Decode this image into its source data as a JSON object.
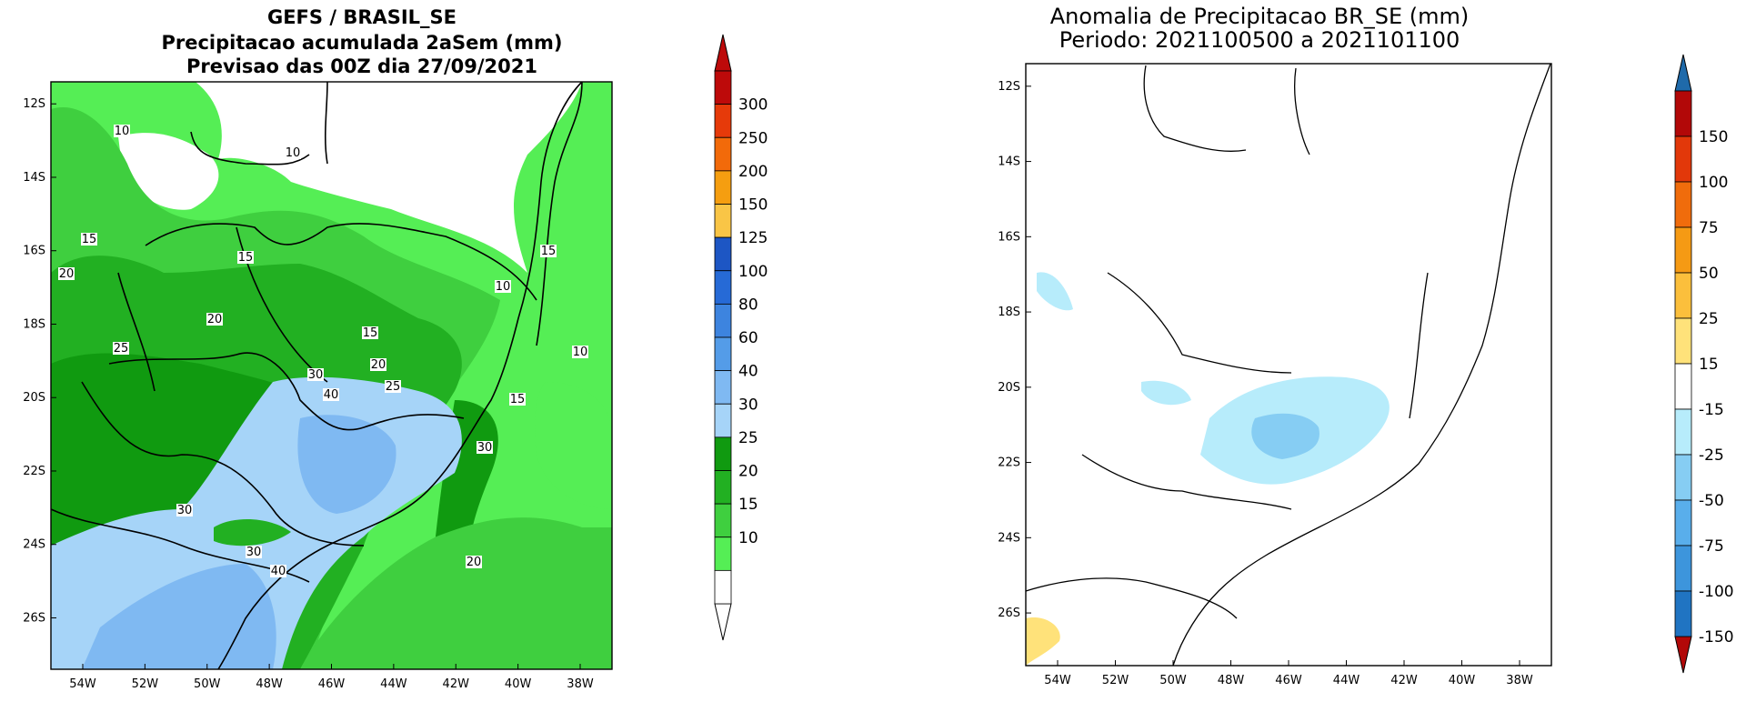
{
  "left_map": {
    "title_lines": [
      "GEFS / BRASIL_SE",
      "Precipitacao acumulada 2aSem (mm)",
      "Previsao das 00Z dia 27/09/2021"
    ],
    "lat_ticks": [
      "12S",
      "14S",
      "16S",
      "18S",
      "20S",
      "22S",
      "24S",
      "26S"
    ],
    "lon_ticks": [
      "54W",
      "52W",
      "50W",
      "48W",
      "46W",
      "44W",
      "42W",
      "40W",
      "38W"
    ],
    "contour_labels": [
      "10",
      "10",
      "15",
      "15",
      "20",
      "20",
      "25",
      "15",
      "20",
      "25",
      "30",
      "40",
      "10",
      "15",
      "10",
      "15",
      "30",
      "30",
      "30",
      "40",
      "20"
    ],
    "colorbar": {
      "labels": [
        "300",
        "250",
        "200",
        "150",
        "125",
        "100",
        "80",
        "60",
        "40",
        "30",
        "25",
        "20",
        "15",
        "10"
      ],
      "colors": [
        "#ffffff",
        "#55ee55",
        "#3fcf3f",
        "#22b022",
        "#109a10",
        "#a6d4f8",
        "#7fb9f2",
        "#549ce8",
        "#3d84df",
        "#266ad6",
        "#1d56c4",
        "#f9c546",
        "#f59e10",
        "#f26a0a",
        "#e63a0a",
        "#bd0a0a"
      ]
    }
  },
  "right_map": {
    "title_lines": [
      "Anomalia de Precipitacao BR_SE (mm)",
      "Periodo: 2021100500 a 2021101100"
    ],
    "lat_ticks": [
      "12S",
      "14S",
      "16S",
      "18S",
      "20S",
      "22S",
      "24S",
      "26S"
    ],
    "lon_ticks": [
      "54W",
      "52W",
      "50W",
      "48W",
      "46W",
      "44W",
      "42W",
      "40W",
      "38W"
    ],
    "colorbar": {
      "labels": [
        "150",
        "100",
        "75",
        "50",
        "25",
        "15",
        "-15",
        "-25",
        "-50",
        "-75",
        "-100",
        "-150"
      ],
      "colors": [
        "#2074c2",
        "#3d95dc",
        "#59aeeb",
        "#86cdf3",
        "#b7ecfb",
        "#ffffff",
        "#ffe27a",
        "#fbbf3c",
        "#f59a14",
        "#f06c0c",
        "#e2380a",
        "#b20808"
      ]
    }
  }
}
